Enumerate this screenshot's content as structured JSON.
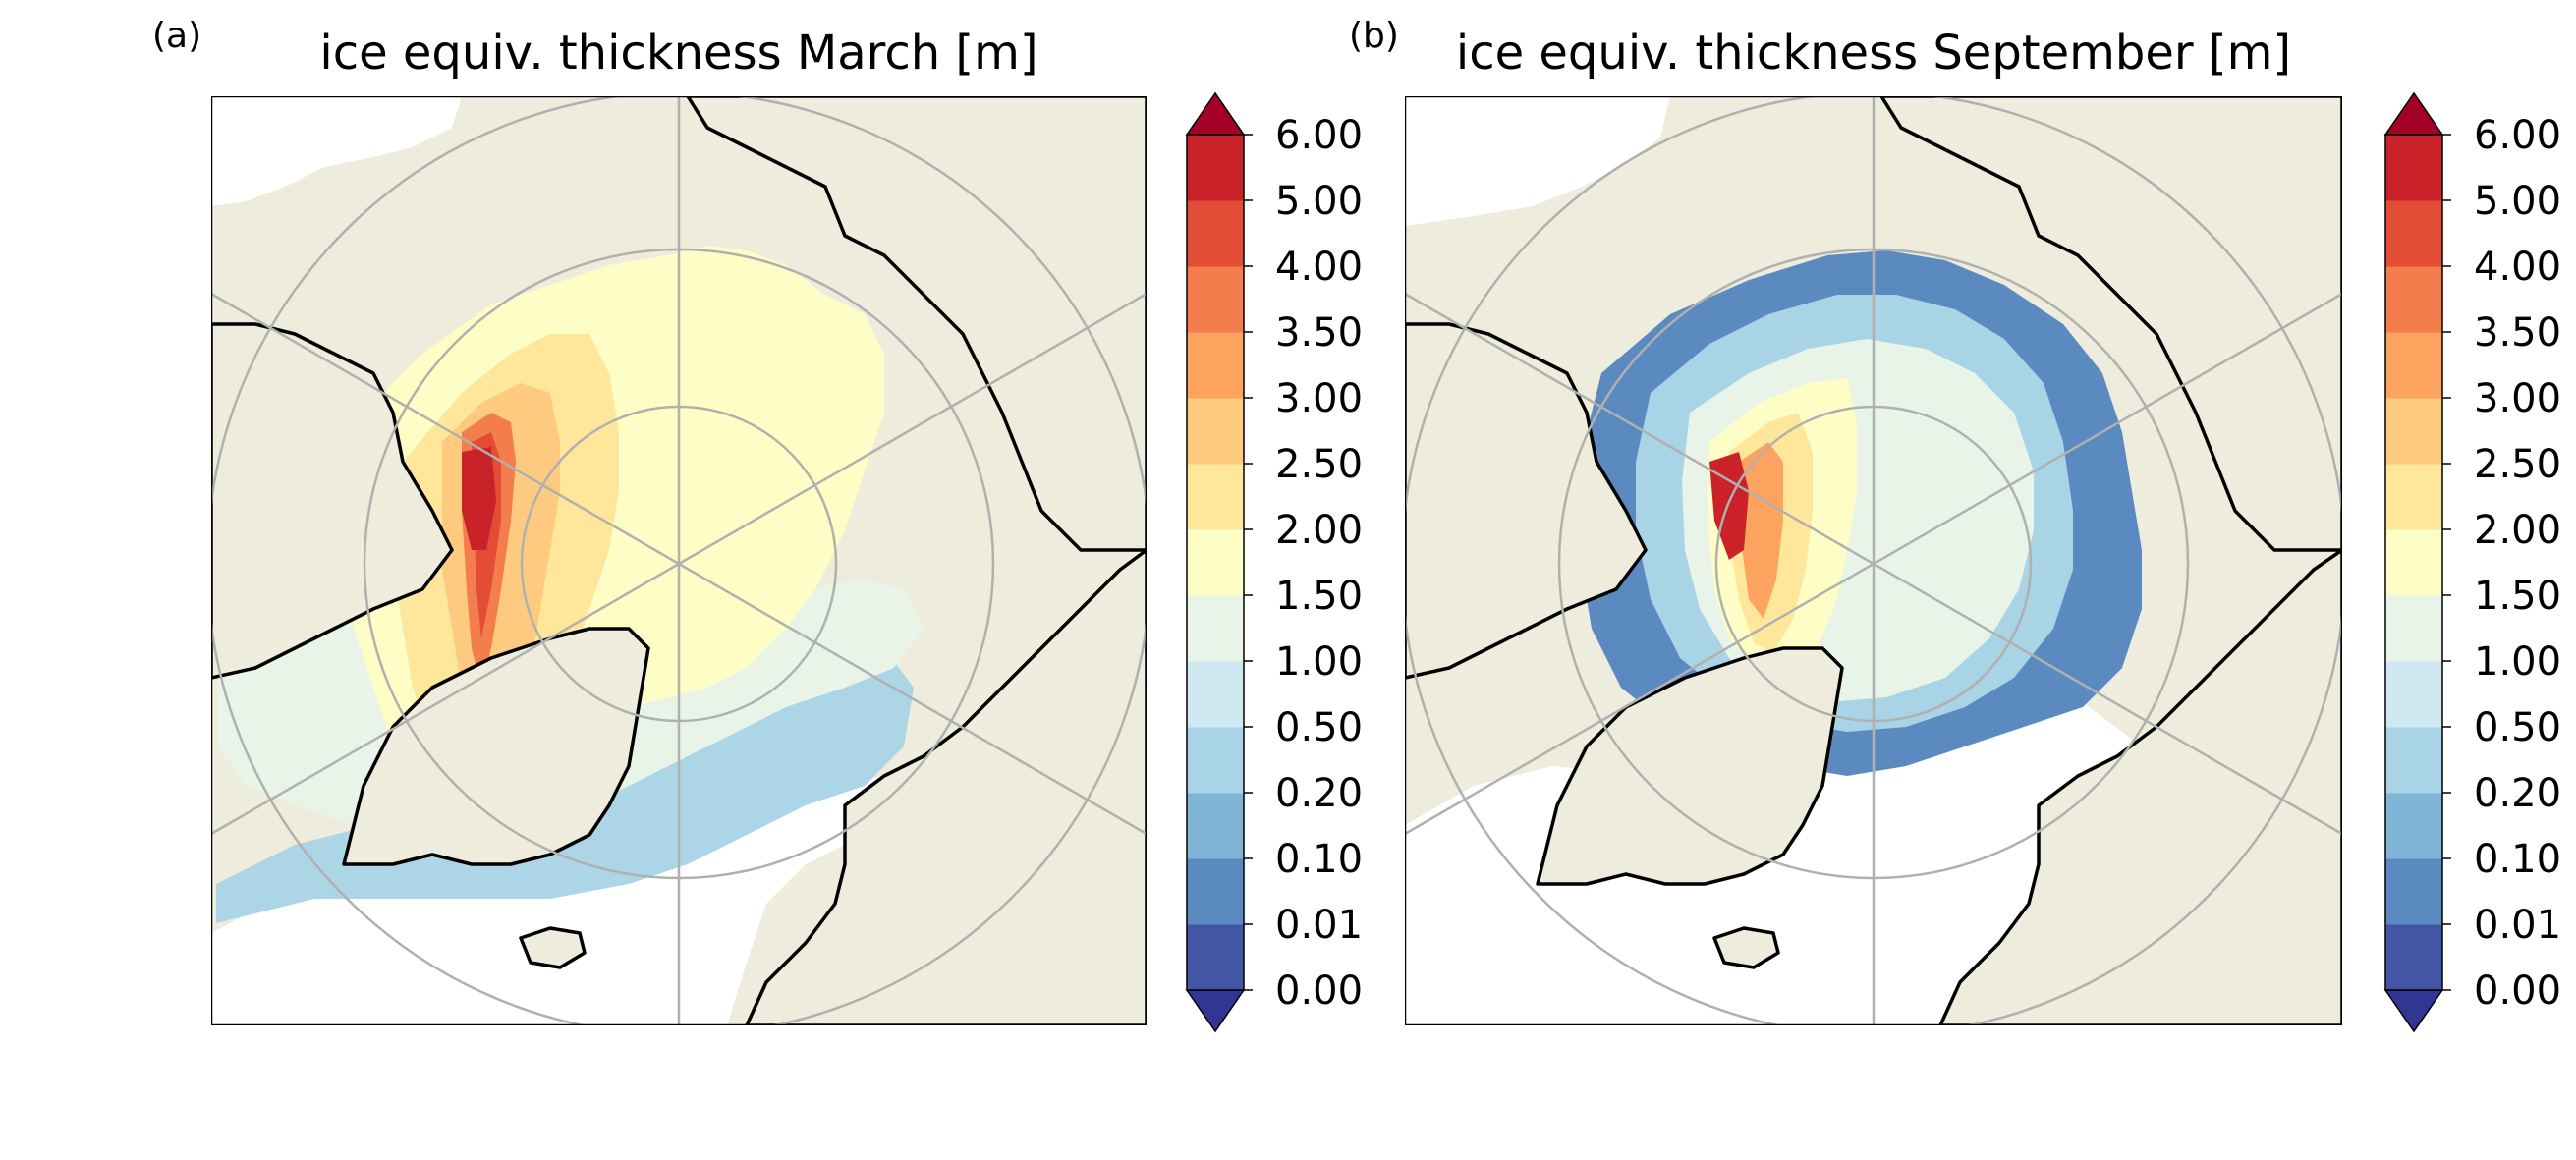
{
  "figure": {
    "panels": [
      {
        "id": "a",
        "label": "(a)",
        "title": "ice equiv. thickness March [m]",
        "variable": "sea ice equivalent thickness",
        "month": "March",
        "unit": "m"
      },
      {
        "id": "b",
        "label": "(b)",
        "title": "ice equiv. thickness September [m]",
        "variable": "sea ice equivalent thickness",
        "month": "September",
        "unit": "m"
      }
    ],
    "map": {
      "projection": "north-polar-stereographic",
      "land_color": "#eeecdc",
      "ocean_no_ice_color": "#ffffff",
      "coastline_color": "#000000",
      "graticule_color": "#b0b0b0"
    },
    "colorbar": {
      "extend": "both",
      "ticks": [
        "0.00",
        "0.01",
        "0.10",
        "0.20",
        "0.50",
        "1.00",
        "1.50",
        "2.00",
        "2.50",
        "3.00",
        "3.50",
        "4.00",
        "5.00",
        "6.00"
      ],
      "under_color": "#313695",
      "over_color": "#a50026",
      "bin_colors": [
        "#4355a5",
        "#5b8ac0",
        "#7fb4d6",
        "#a8d4e6",
        "#cfe8f2",
        "#e9f4e8",
        "#fefdc5",
        "#fee79b",
        "#fdca7f",
        "#fba35f",
        "#f47d4d",
        "#e34c35",
        "#c92229"
      ]
    }
  }
}
